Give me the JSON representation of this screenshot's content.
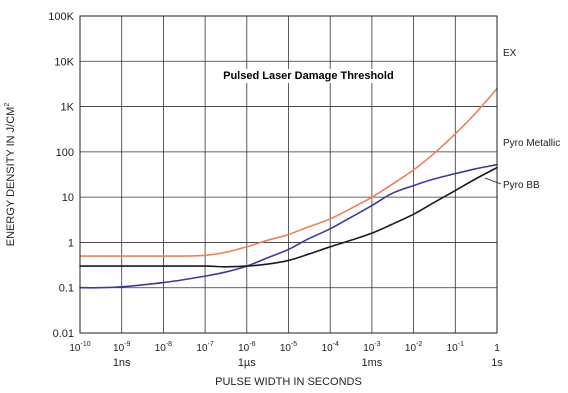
{
  "chart_data": {
    "type": "line",
    "title": "Pulsed Laser Damage Threshold",
    "xlabel": "PULSE WIDTH IN SECONDS",
    "ylabel": "ENERGY DENSITY IN J/CM",
    "ylabel_sup": "2",
    "x_scale": "log",
    "y_scale": "log",
    "xlim": [
      1e-10,
      1
    ],
    "ylim": [
      0.01,
      100000
    ],
    "grid": true,
    "x_ticks": [
      {
        "value": 1e-10,
        "base": "10",
        "exp": "-10"
      },
      {
        "value": 1e-09,
        "base": "10",
        "exp": "-9"
      },
      {
        "value": 1e-08,
        "base": "10",
        "exp": "-8"
      },
      {
        "value": 1e-07,
        "base": "10",
        "exp": "-7"
      },
      {
        "value": 1e-06,
        "base": "10",
        "exp": "-6"
      },
      {
        "value": 1e-05,
        "base": "10",
        "exp": "-5"
      },
      {
        "value": 0.0001,
        "base": "10",
        "exp": "-4"
      },
      {
        "value": 0.001,
        "base": "10",
        "exp": "-3"
      },
      {
        "value": 0.01,
        "base": "10",
        "exp": "-2"
      },
      {
        "value": 0.1,
        "base": "10",
        "exp": "-1"
      },
      {
        "value": 1,
        "base": "1",
        "exp": ""
      }
    ],
    "x_secondary_ticks": [
      {
        "value": 1e-09,
        "label": "1ns"
      },
      {
        "value": 1e-06,
        "label": "1µs"
      },
      {
        "value": 0.001,
        "label": "1ms"
      },
      {
        "value": 1,
        "label": "1s"
      }
    ],
    "y_ticks": [
      {
        "value": 100000,
        "label": "100K"
      },
      {
        "value": 10000,
        "label": "10K"
      },
      {
        "value": 1000,
        "label": "1K"
      },
      {
        "value": 100,
        "label": "100"
      },
      {
        "value": 10,
        "label": "10"
      },
      {
        "value": 1,
        "label": "1"
      },
      {
        "value": 0.1,
        "label": "0.1"
      },
      {
        "value": 0.01,
        "label": "0.01"
      }
    ],
    "series": [
      {
        "name": "EX",
        "color": "#f08050",
        "x": [
          1e-10,
          3e-10,
          1e-09,
          1e-08,
          3e-08,
          1e-07,
          3e-07,
          1e-06,
          3e-06,
          1e-05,
          3e-05,
          0.0001,
          0.0003,
          0.001,
          0.003,
          0.01,
          0.03,
          0.1,
          0.3,
          1
        ],
        "y": [
          0.5,
          0.5,
          0.5,
          0.5,
          0.5,
          0.52,
          0.6,
          0.8,
          1.1,
          1.5,
          2.2,
          3.3,
          5.5,
          10,
          19,
          40,
          90,
          250,
          700,
          2500
        ]
      },
      {
        "name": "Pyro Metallic",
        "color": "#3a3aa0",
        "x": [
          1e-10,
          3e-10,
          1e-09,
          3e-09,
          1e-08,
          3e-08,
          1e-07,
          3e-07,
          1e-06,
          3e-06,
          1e-05,
          3e-05,
          0.0001,
          0.0003,
          0.001,
          0.003,
          0.01,
          0.03,
          0.1,
          0.3,
          1
        ],
        "y": [
          0.1,
          0.1,
          0.105,
          0.115,
          0.13,
          0.15,
          0.18,
          0.22,
          0.3,
          0.45,
          0.7,
          1.2,
          2,
          3.5,
          6.5,
          12,
          18,
          25,
          33,
          42,
          52
        ]
      },
      {
        "name": "Pyro BB",
        "color": "#1a1a1a",
        "x": [
          1e-10,
          3e-10,
          1e-09,
          1e-08,
          1e-07,
          3e-07,
          1e-06,
          3e-06,
          1e-05,
          3e-05,
          0.0001,
          0.0003,
          0.001,
          0.003,
          0.01,
          0.03,
          0.1,
          0.3,
          1
        ],
        "y": [
          0.3,
          0.3,
          0.3,
          0.3,
          0.3,
          0.29,
          0.3,
          0.33,
          0.4,
          0.55,
          0.8,
          1.1,
          1.6,
          2.5,
          4.2,
          7.5,
          14,
          25,
          45
        ]
      }
    ]
  }
}
